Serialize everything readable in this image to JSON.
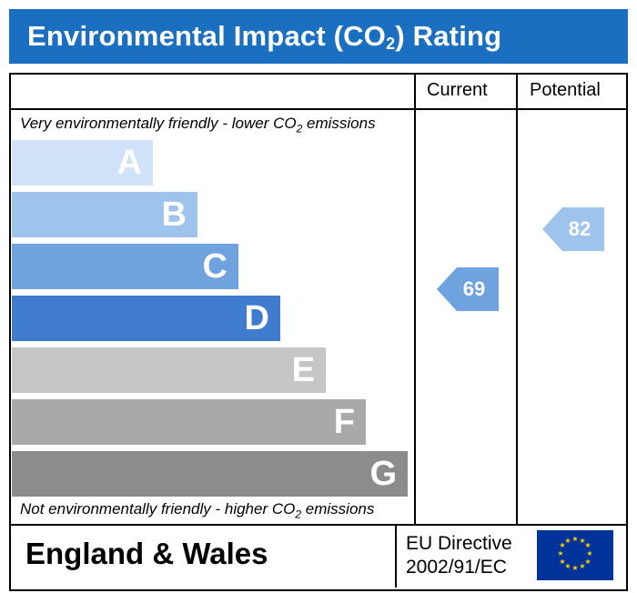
{
  "header": {
    "title_prefix": "Environmental Impact (CO",
    "title_sub": "2",
    "title_suffix": ") Rating",
    "background_color": "#1a6fc0"
  },
  "columns": {
    "current_label": "Current",
    "potential_label": "Potential"
  },
  "scale": {
    "top_note_prefix": "Very environmentally friendly - lower CO",
    "top_note_sub": "2",
    "top_note_suffix": " emissions",
    "bottom_note_prefix": "Not environmentally friendly - higher CO",
    "bottom_note_sub": "2",
    "bottom_note_suffix": " emissions"
  },
  "bands": [
    {
      "letter": "A",
      "color": "#cfe2f8"
    },
    {
      "letter": "B",
      "color": "#9ec4ee"
    },
    {
      "letter": "C",
      "color": "#6fa3e0"
    },
    {
      "letter": "D",
      "color": "#3f7ccf"
    },
    {
      "letter": "E",
      "color": "#c6c6c6"
    },
    {
      "letter": "F",
      "color": "#a9a9a9"
    },
    {
      "letter": "G",
      "color": "#8c8c8c"
    }
  ],
  "ratings": {
    "current": {
      "value": "69",
      "band": "C",
      "color": "#6fa3e0"
    },
    "potential": {
      "value": "82",
      "band": "B",
      "color": "#9ec4ee"
    }
  },
  "footer": {
    "region": "England & Wales",
    "directive_line1": "EU Directive",
    "directive_line2": "2002/91/EC",
    "flag": "eu-flag-icon"
  }
}
